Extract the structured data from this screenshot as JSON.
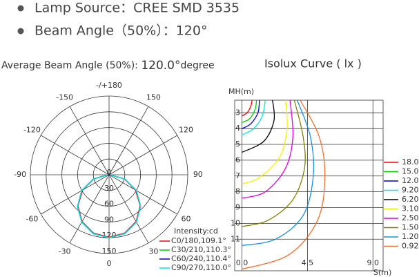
{
  "bullets": [
    "Lamp Source：CREE SMD 3535",
    "Beam Angle（50%）：120°"
  ],
  "average_beam_angle": {
    "label": "Average Beam Angle (50%):",
    "value": "120.0°",
    "unit": "degree"
  },
  "chart_data": [
    {
      "type": "polar",
      "legend_title": "Intensity:cd",
      "theta": [
        -90,
        -75,
        -60,
        -45,
        -30,
        -15,
        0,
        15,
        30,
        45,
        60,
        75,
        90
      ],
      "rlim": [
        0,
        150
      ],
      "rticks": [
        0,
        30,
        60,
        90,
        120,
        150
      ],
      "thetaticks": [
        {
          "value": 180,
          "label": "-/+180"
        },
        150,
        120,
        90,
        60,
        30,
        0,
        -30,
        -60,
        -90,
        -120,
        -150
      ],
      "series": [
        {
          "name": "C0/180,109.1°",
          "color": "#ff0000",
          "values": [
            2,
            30,
            58,
            84,
            103,
            115,
            119,
            115,
            103,
            84,
            58,
            30,
            2
          ]
        },
        {
          "name": "C30/210,110.3°",
          "color": "#00cc00",
          "values": [
            2,
            31,
            60,
            85,
            104,
            116,
            120,
            116,
            104,
            85,
            60,
            31,
            2
          ]
        },
        {
          "name": "C60/240,110.4°",
          "color": "#0000cc",
          "values": [
            2,
            31,
            60,
            85,
            104,
            116,
            120,
            116,
            104,
            85,
            60,
            31,
            2
          ]
        },
        {
          "name": "C90/270,110.0°",
          "color": "#00e5e5",
          "values": [
            2,
            31,
            60,
            85,
            104,
            116,
            120,
            116,
            104,
            85,
            60,
            31,
            2
          ]
        }
      ]
    },
    {
      "type": "isolux",
      "title": "Isolux Curve ( lx )",
      "xlabel": "S(m)",
      "ylabel": "MH(m)",
      "xlim": [
        -0.5,
        9.7
      ],
      "ylim": [
        13,
        2.2
      ],
      "xticks": [
        {
          "value": 0,
          "label": "0.0"
        },
        4.5,
        {
          "value": 9,
          "label": "9.0"
        }
      ],
      "yticks": [
        3,
        4,
        5,
        6,
        7,
        8,
        9,
        10,
        11
      ],
      "series": [
        {
          "name": "18.0",
          "color": "#ff0000",
          "x": [
            0.7,
            0.6,
            0.35,
            0
          ],
          "y": [
            2.2,
            2.6,
            3.0,
            3.2
          ]
        },
        {
          "name": "15.0",
          "color": "#00cc00",
          "x": [
            1.0,
            0.9,
            0.5,
            0
          ],
          "y": [
            2.2,
            2.8,
            3.4,
            3.6
          ]
        },
        {
          "name": "12.0",
          "color": "#0000cc",
          "x": [
            1.2,
            1.1,
            0.6,
            0
          ],
          "y": [
            2.2,
            3.0,
            3.7,
            4.0
          ]
        },
        {
          "name": "9.20",
          "color": "#00e5e5",
          "x": [
            1.6,
            1.4,
            0.8,
            0
          ],
          "y": [
            2.2,
            3.2,
            4.0,
            4.4
          ]
        },
        {
          "name": "6.20",
          "color": "#000000",
          "x": [
            2.1,
            2.2,
            1.5,
            0
          ],
          "y": [
            2.2,
            3.5,
            4.8,
            5.5
          ]
        },
        {
          "name": "3.10",
          "color": "#f2f200",
          "x": [
            3.0,
            3.1,
            2.6,
            1.2,
            0
          ],
          "y": [
            2.2,
            4.0,
            5.8,
            7.1,
            7.5
          ]
        },
        {
          "name": "2.50",
          "color": "#e000e0",
          "x": [
            3.3,
            3.5,
            3.0,
            1.6,
            0
          ],
          "y": [
            2.2,
            4.5,
            6.5,
            8.0,
            8.4
          ]
        },
        {
          "name": "1.50",
          "color": "#808000",
          "x": [
            3.6,
            4.2,
            4.3,
            3.5,
            1.8,
            0
          ],
          "y": [
            2.2,
            4.5,
            6.5,
            8.5,
            9.8,
            10.2
          ]
        },
        {
          "name": "1.20",
          "color": "#1a8fe0",
          "x": [
            3.8,
            4.7,
            4.9,
            4.2,
            2.3,
            0
          ],
          "y": [
            2.2,
            4.5,
            7.0,
            9.5,
            11.0,
            11.4
          ]
        },
        {
          "name": "0.92",
          "color": "#f07030",
          "x": [
            4.0,
            5.3,
            5.7,
            5.2,
            3.2,
            0
          ],
          "y": [
            2.2,
            4.5,
            7.0,
            9.8,
            12.0,
            12.9
          ]
        }
      ]
    }
  ]
}
